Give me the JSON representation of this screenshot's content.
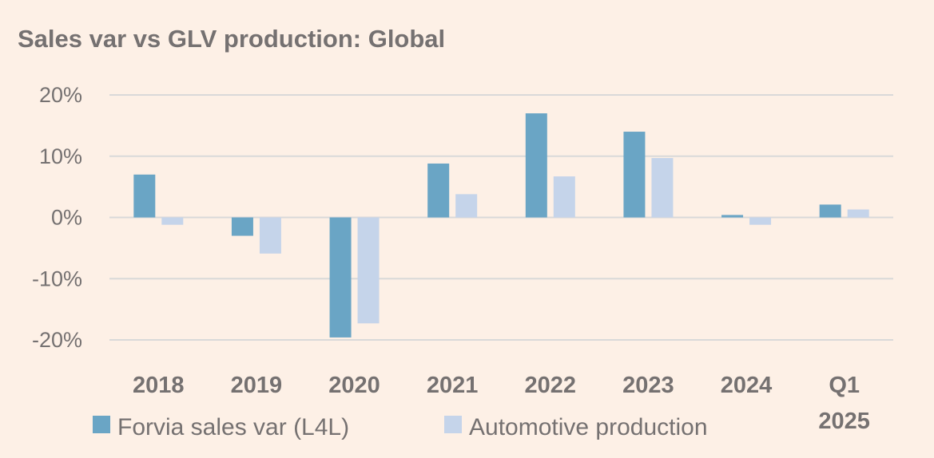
{
  "chart_data": {
    "type": "bar",
    "title": "Sales var vs GLV production: Global",
    "xlabel": "",
    "ylabel": "",
    "categories": [
      "2018",
      "2019",
      "2020",
      "2021",
      "2022",
      "2023",
      "2024",
      "Q1 2025"
    ],
    "category_lines": [
      [
        "2018"
      ],
      [
        "2019"
      ],
      [
        "2020"
      ],
      [
        "2021"
      ],
      [
        "2022"
      ],
      [
        "2023"
      ],
      [
        "2024"
      ],
      [
        "Q1",
        "2025"
      ]
    ],
    "series": [
      {
        "name": "Forvia sales var (L4L)",
        "color": "#6aa5c5",
        "values": [
          7.0,
          -3.0,
          -19.6,
          8.8,
          17.0,
          14.0,
          0.4,
          2.1
        ]
      },
      {
        "name": "Automotive production",
        "color": "#c5d4ea",
        "values": [
          -1.2,
          -5.9,
          -17.3,
          3.8,
          6.7,
          9.7,
          -1.2,
          1.3
        ]
      }
    ],
    "ylim": [
      -20,
      20
    ],
    "yticks": [
      20,
      10,
      0,
      -10,
      -20
    ],
    "ytick_labels": [
      "20%",
      "10%",
      "0%",
      "-10%",
      "-20%"
    ],
    "grid": true,
    "legend_position": "bottom-left"
  }
}
